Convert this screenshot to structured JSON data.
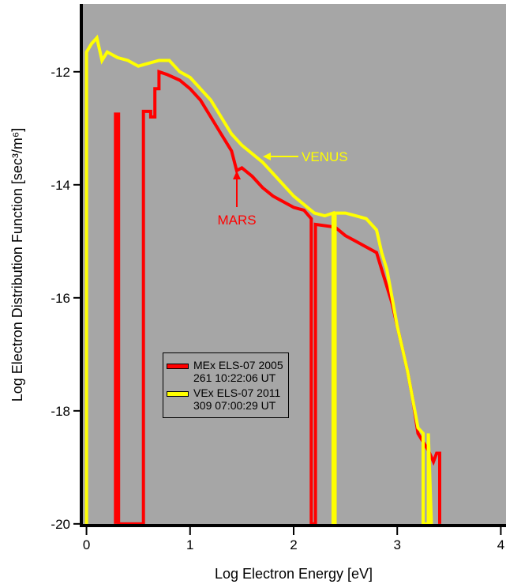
{
  "chart_data": {
    "type": "line",
    "xlabel": "Log Electron Energy [eV]",
    "ylabel": "Log Electron Distribution Function [sec³/m⁶]",
    "xlim": [
      -0.05,
      4.05
    ],
    "ylim": [
      -20.03,
      -10.8
    ],
    "xticks": [
      0,
      1,
      2,
      3,
      4
    ],
    "yticks": [
      -12,
      -14,
      -16,
      -18,
      -20
    ],
    "background": "#a6a6a6",
    "annotations": [
      {
        "text": "VENUS",
        "color": "#ffff00"
      },
      {
        "text": "MARS",
        "color": "#ff0000"
      }
    ],
    "series": [
      {
        "name": "MEx ELS-07 2005 261 10:22:06 UT",
        "color": "#ff0000",
        "x": [
          0.28,
          0.28,
          0.31,
          0.31,
          0.55,
          0.55,
          0.62,
          0.62,
          0.66,
          0.66,
          0.7,
          0.7,
          0.78,
          0.9,
          1.0,
          1.1,
          1.2,
          1.3,
          1.4,
          1.45,
          1.5,
          1.6,
          1.7,
          1.8,
          1.9,
          2.0,
          2.1,
          2.17,
          2.17,
          2.21,
          2.21,
          2.4,
          2.5,
          2.6,
          2.7,
          2.8,
          2.85,
          2.9,
          2.95,
          3.0,
          3.05,
          3.1,
          3.15,
          3.2,
          3.3,
          3.35,
          3.38,
          3.41,
          3.41
        ],
        "values": [
          -20,
          -12.75,
          -12.75,
          -20,
          -20,
          -12.7,
          -12.7,
          -12.8,
          -12.8,
          -12.3,
          -12.3,
          -12.0,
          -12.05,
          -12.15,
          -12.3,
          -12.5,
          -12.8,
          -13.1,
          -13.4,
          -13.75,
          -13.7,
          -13.85,
          -14.05,
          -14.2,
          -14.3,
          -14.4,
          -14.45,
          -14.6,
          -20,
          -20,
          -14.7,
          -14.75,
          -14.9,
          -15.0,
          -15.1,
          -15.2,
          -15.5,
          -15.8,
          -16.1,
          -16.5,
          -16.9,
          -17.3,
          -17.8,
          -18.4,
          -18.7,
          -18.9,
          -18.75,
          -18.75,
          -20
        ]
      },
      {
        "name": "VEx ELS-07 2011 309 07:00:29 UT",
        "color": "#ffff00",
        "x": [
          0.0,
          0.0,
          0.05,
          0.1,
          0.15,
          0.2,
          0.3,
          0.4,
          0.5,
          0.6,
          0.7,
          0.8,
          0.9,
          1.0,
          1.1,
          1.2,
          1.3,
          1.4,
          1.5,
          1.6,
          1.7,
          1.8,
          1.9,
          2.0,
          2.1,
          2.2,
          2.3,
          2.38,
          2.38,
          2.4,
          2.4,
          2.5,
          2.6,
          2.7,
          2.8,
          2.85,
          2.9,
          2.95,
          3.0,
          3.05,
          3.1,
          3.15,
          3.2,
          3.25,
          3.25,
          3.3,
          3.3,
          3.33
        ],
        "values": [
          -20,
          -11.65,
          -11.5,
          -11.4,
          -11.8,
          -11.65,
          -11.75,
          -11.8,
          -11.9,
          -11.85,
          -11.8,
          -11.8,
          -12.0,
          -12.1,
          -12.3,
          -12.5,
          -12.8,
          -13.1,
          -13.3,
          -13.45,
          -13.6,
          -13.8,
          -14.0,
          -14.2,
          -14.35,
          -14.5,
          -14.55,
          -14.5,
          -20,
          -20,
          -14.5,
          -14.5,
          -14.55,
          -14.6,
          -14.8,
          -15.2,
          -15.5,
          -16.0,
          -16.5,
          -16.9,
          -17.3,
          -17.8,
          -18.3,
          -18.4,
          -20,
          -20,
          -18.4,
          -20
        ]
      }
    ]
  }
}
